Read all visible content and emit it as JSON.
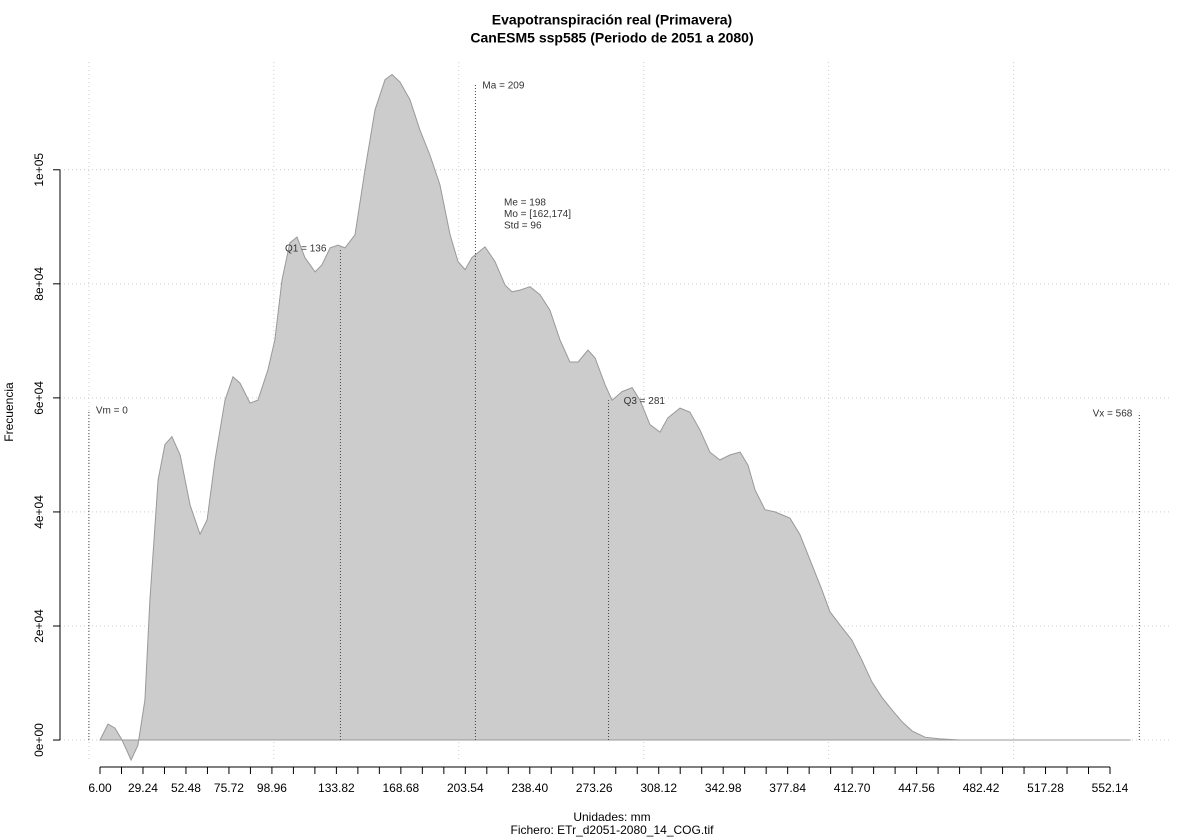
{
  "chart_data": {
    "type": "area",
    "title": "Evapotranspiración real (Primavera)",
    "subtitle": "CanESM5 ssp585 (Periodo de 2051 a 2080)",
    "xlabel": "Unidades: mm",
    "caption": "Fichero: ETr_d2051-2080_14_COG.tif",
    "ylabel": "Frecuencia",
    "color": "#cccccc",
    "line_color": "#999999",
    "grid": true,
    "x": [
      6.0,
      10.3,
      14.1,
      17.9,
      22.8,
      26.5,
      30.3,
      33.0,
      37.4,
      41.1,
      44.9,
      49.3,
      54.7,
      60.1,
      63.9,
      68.2,
      73.6,
      77.9,
      81.7,
      87.1,
      91.4,
      96.8,
      100.6,
      104.4,
      108.7,
      112.5,
      116.8,
      122.3,
      126.0,
      130.4,
      134.7,
      138.5,
      143.9,
      149.3,
      154.7,
      160.1,
      163.9,
      168.2,
      173.6,
      179.0,
      184.4,
      189.8,
      195.3,
      199.6,
      203.4,
      207.1,
      214.2,
      219.6,
      225.0,
      228.8,
      233.1,
      238.5,
      243.9,
      249.3,
      254.7,
      260.1,
      264.5,
      269.9,
      273.7,
      279.1,
      282.9,
      288.3,
      293.7,
      298.0,
      303.4,
      308.8,
      313.1,
      319.6,
      325.0,
      330.4,
      335.8,
      341.2,
      346.7,
      352.1,
      356.4,
      360.2,
      365.6,
      371.0,
      379.1,
      384.5,
      389.9,
      396.4,
      400.7,
      406.1,
      412.6,
      418.0,
      423.4,
      428.8,
      434.2,
      439.7,
      445.1,
      452.1,
      460.2,
      471.0,
      492.7,
      563.0
    ],
    "values": [
      0,
      2800,
      2100,
      0,
      -3500,
      -900,
      7000,
      24600,
      45600,
      51800,
      53200,
      50000,
      41200,
      36100,
      38600,
      49100,
      59600,
      63700,
      62600,
      59100,
      59600,
      64900,
      70200,
      80700,
      87200,
      88200,
      84600,
      82100,
      83300,
      86300,
      86800,
      86300,
      88600,
      100000,
      110500,
      115800,
      116700,
      115400,
      112300,
      107000,
      102600,
      97400,
      88600,
      83900,
      82500,
      84600,
      86500,
      83900,
      79800,
      78600,
      78900,
      79500,
      78100,
      75400,
      70200,
      66300,
      66300,
      68400,
      67000,
      62300,
      59600,
      61100,
      61800,
      59600,
      55300,
      54000,
      56500,
      58200,
      57500,
      54400,
      50500,
      49100,
      50000,
      50500,
      48200,
      43900,
      40400,
      40000,
      38900,
      36000,
      31600,
      26300,
      22500,
      20200,
      17500,
      14000,
      10200,
      7500,
      5300,
      3200,
      1600,
      500,
      200,
      0,
      0,
      0
    ],
    "xlim": [
      -0.6,
      600.4
    ],
    "ylim": [
      -3500,
      118900
    ],
    "xticks": [
      {
        "value": 6,
        "label": "6.00"
      },
      29.24,
      52.48,
      75.72,
      98.96,
      133.82,
      168.68,
      203.54,
      {
        "value": 238.4,
        "label": "238.40"
      },
      273.26,
      308.12,
      342.98,
      377.84,
      {
        "value": 412.7,
        "label": "412.70"
      },
      447.56,
      482.42,
      517.28,
      552.14
    ],
    "xminorticks": [
      17.62,
      40.86,
      64.1,
      87.34,
      110.58,
      122.2,
      145.44,
      157.06,
      180.3,
      191.92,
      215.16,
      226.78,
      250.02,
      261.64,
      284.88,
      296.5,
      319.74,
      331.36,
      354.6,
      366.22,
      389.46,
      401.08,
      424.32,
      435.94,
      459.18,
      470.8,
      494.04,
      505.66,
      528.9,
      540.52
    ],
    "xgrid": [
      0,
      100,
      200,
      300,
      400,
      500
    ],
    "yticks": [
      {
        "value": 0,
        "label": "0e+00"
      },
      {
        "value": 20000,
        "label": "2e+04"
      },
      {
        "value": 40000,
        "label": "4e+04"
      },
      {
        "value": 60000,
        "label": "6e+04"
      },
      {
        "value": 80000,
        "label": "8e+04"
      },
      {
        "value": 100000,
        "label": "1e+05"
      }
    ],
    "annotations": [
      {
        "label": "Vm = 0",
        "x": 0,
        "y": 57900
      },
      {
        "label": "Q1 = 136",
        "x": 136,
        "y": 86300
      },
      {
        "label": "Ma = 209",
        "x": 209,
        "y": 114900
      },
      {
        "label": "Q3 = 281",
        "x": 281,
        "y": 59600
      },
      {
        "label": "Vx = 568",
        "x": 568,
        "y": 57400
      }
    ],
    "stats": [
      "Me = 198",
      "Mo = [162,174]",
      "Std = 96"
    ]
  }
}
